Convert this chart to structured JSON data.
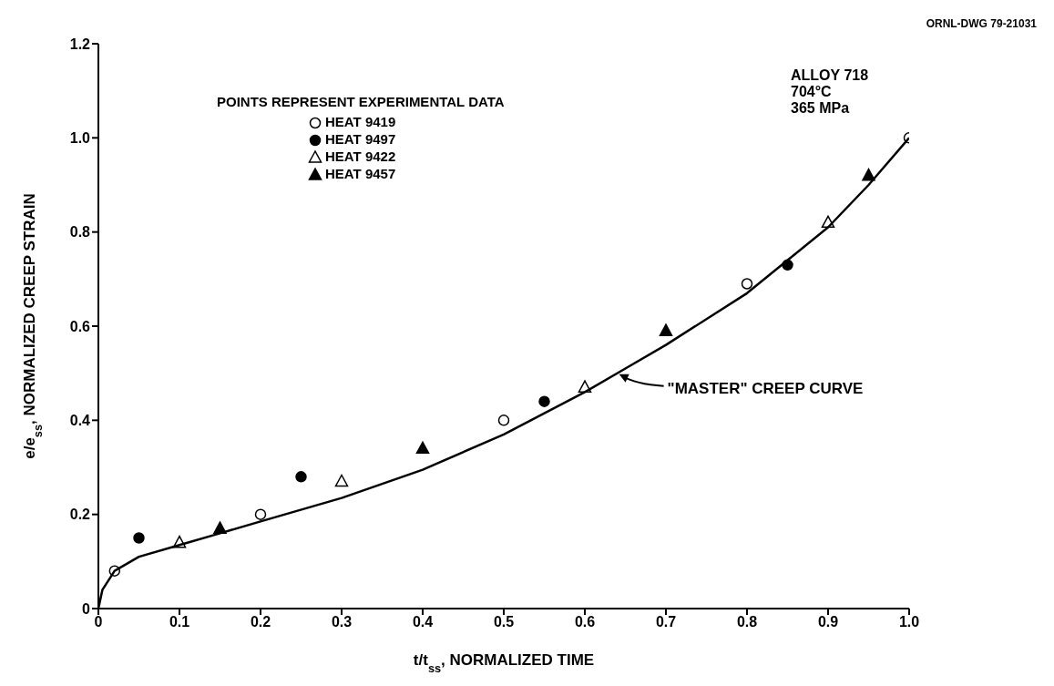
{
  "chart_data": {
    "type": "scatter",
    "xlabel": "t/t$_{ss}$, NORMALIZED TIME",
    "ylabel": "e/e$_{ss}$, NORMALIZED CREEP STRAIN",
    "legend_title": "POINTS REPRESENT EXPERIMENTAL DATA",
    "legend": "top left",
    "grid": false,
    "xlim": [
      0,
      1
    ],
    "ylim": [
      0,
      1.2
    ],
    "xticks": [
      0,
      0.1,
      0.2,
      0.3,
      0.4,
      0.5,
      0.6,
      0.7,
      0.8,
      0.9,
      {
        "value": 1,
        "label": "1.0"
      }
    ],
    "yticks": [
      0,
      0.2,
      0.4,
      0.6,
      0.8,
      {
        "value": 1,
        "label": "1.0"
      },
      1.2
    ],
    "series": [
      {
        "name": "HEAT 9419",
        "color": "#ffffff",
        "marker": "circle",
        "x": [
          0.02,
          0.2,
          0.5,
          0.8,
          1.0
        ],
        "values": [
          0.08,
          0.2,
          0.4,
          0.69,
          1.0
        ]
      },
      {
        "name": "HEAT 9497",
        "color": "#000000",
        "marker": "circle",
        "x": [
          0.05,
          0.25,
          0.55,
          0.85
        ],
        "values": [
          0.15,
          0.28,
          0.44,
          0.73
        ]
      },
      {
        "name": "HEAT 9422",
        "color": "#ffffff",
        "marker": "triangle",
        "x": [
          0.1,
          0.3,
          0.6,
          0.9
        ],
        "values": [
          0.14,
          0.27,
          0.47,
          0.82
        ]
      },
      {
        "name": "HEAT 9457",
        "color": "#000000",
        "marker": "triangle",
        "x": [
          0.15,
          0.4,
          0.7,
          0.95
        ],
        "values": [
          0.17,
          0.34,
          0.59,
          0.92
        ]
      },
      {
        "type": "line",
        "color": "#000000",
        "marker": "none",
        "line_style": "solid",
        "x": [
          0,
          0.005,
          0.02,
          0.05,
          0.1,
          0.15,
          0.2,
          0.3,
          0.4,
          0.5,
          0.6,
          0.65,
          0.7,
          0.8,
          0.9,
          0.95,
          1.0
        ],
        "values": [
          0,
          0.04,
          0.08,
          0.11,
          0.135,
          0.16,
          0.185,
          0.235,
          0.295,
          0.37,
          0.46,
          0.51,
          0.56,
          0.67,
          0.81,
          0.9,
          1.0
        ]
      }
    ],
    "annotations": [
      "ORNL-DWG 79-21031",
      "ALLOY 718",
      "704°C",
      "365 MPa",
      {
        "text": "\"MASTER\" CREEP CURVE",
        "x": 0.64,
        "y": 0.5
      }
    ]
  }
}
